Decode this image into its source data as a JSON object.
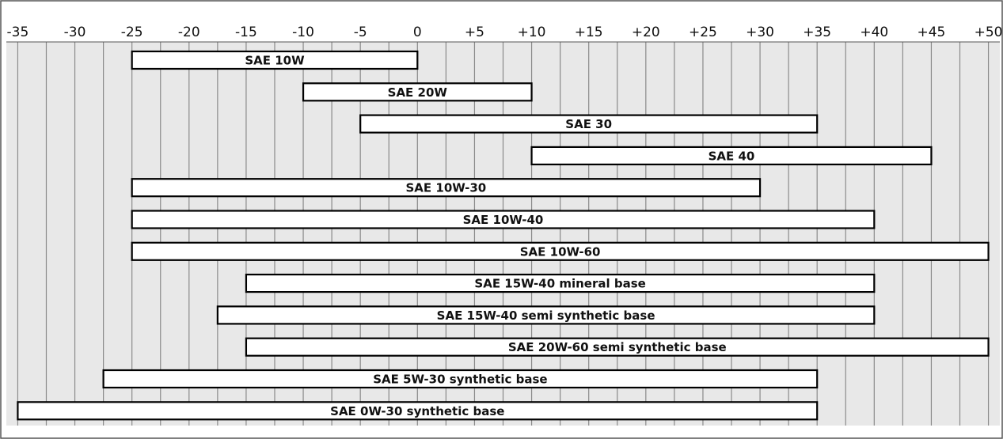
{
  "chart_data": {
    "type": "bar",
    "orientation": "horizontal-range",
    "x_ticks": [
      "-35",
      "-30",
      "-25",
      "-20",
      "-15",
      "-10",
      "-5",
      "0",
      "+5",
      "+10",
      "+15",
      "+20",
      "+25",
      "+30",
      "+35",
      "+40",
      "+45",
      "+50"
    ],
    "xlim": [
      -36,
      51
    ],
    "grid": true,
    "colors": {
      "plot_background": "#e8e8e8",
      "grid_line": "#8a8a8a",
      "bar_fill": "#ffffff",
      "bar_stroke": "#000000",
      "frame": "#555555"
    },
    "ranges": [
      {
        "label": "SAE 10W",
        "min": -25,
        "max": 0
      },
      {
        "label": "SAE 20W",
        "min": -10,
        "max": 10
      },
      {
        "label": "SAE 30",
        "min": -5,
        "max": 35
      },
      {
        "label": "SAE 40",
        "min": 10,
        "max": 45
      },
      {
        "label": "SAE 10W-30",
        "min": -25,
        "max": 30
      },
      {
        "label": "SAE 10W-40",
        "min": -25,
        "max": 40
      },
      {
        "label": "SAE 10W-60",
        "min": -25,
        "max": 50
      },
      {
        "label": "SAE 15W-40 mineral base",
        "min": -15,
        "max": 40
      },
      {
        "label": "SAE 15W-40 semi synthetic base",
        "min": -17.5,
        "max": 40
      },
      {
        "label": "SAE 20W-60 semi synthetic base",
        "min": -15,
        "max": 50
      },
      {
        "label": "SAE 5W-30 synthetic base",
        "min": -27.5,
        "max": 35
      },
      {
        "label": "SAE 0W-30 synthetic base",
        "min": -35,
        "max": 35
      }
    ]
  }
}
